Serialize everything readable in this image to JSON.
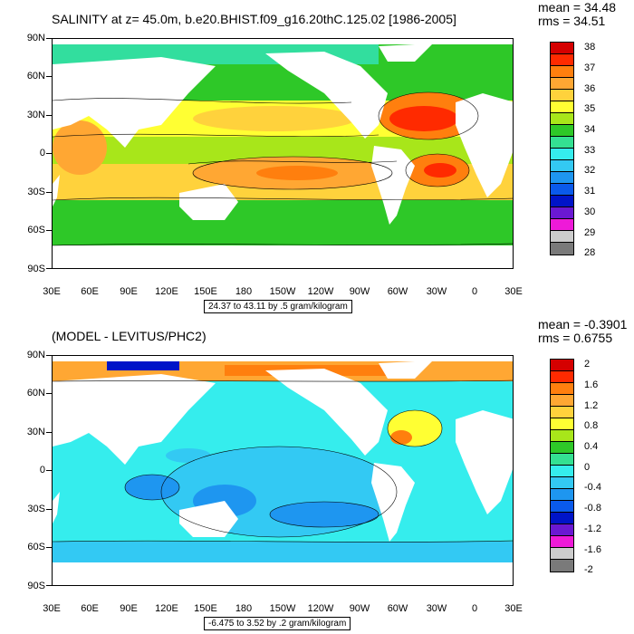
{
  "panels": [
    {
      "title": "SALINITY at z=  45.0m, b.e20.BHIST.f09_g16.20thC.125.02 [1986-2005]",
      "mean_text": "mean = 34.48",
      "rms_text": "rms = 34.51",
      "subtitle": "24.37 to 43.11 by .5 gram/kilogram",
      "lat_labels": [
        "90N",
        "60N",
        "30N",
        "0",
        "30S",
        "60S",
        "90S"
      ],
      "lon_labels": [
        "30E",
        "60E",
        "90E",
        "120E",
        "150E",
        "180",
        "150W",
        "120W",
        "90W",
        "60W",
        "30W",
        "0",
        "30E"
      ],
      "colorbar_labels": [
        "38",
        "37",
        "36",
        "35",
        "34",
        "33",
        "32",
        "31",
        "30",
        "29",
        "28"
      ],
      "colorbar_colors": [
        "#d50000",
        "#ff2a00",
        "#ff7f0e",
        "#ffa733",
        "#ffd23c",
        "#ffff33",
        "#a8e61a",
        "#2ec828",
        "#34e092",
        "#35eded",
        "#33c9f3",
        "#1e96f0",
        "#0a5aeb",
        "#0014c8",
        "#6a18d2",
        "#ee1ad8",
        "#cccccc",
        "#7a7a7a"
      ]
    },
    {
      "title": "(MODEL - LEVITUS/PHC2)",
      "mean_text": "mean = -0.3901",
      "rms_text": "rms = 0.6755",
      "subtitle": "-6.475 to 3.52 by .2 gram/kilogram",
      "lat_labels": [
        "90N",
        "60N",
        "30N",
        "0",
        "30S",
        "60S",
        "90S"
      ],
      "lon_labels": [
        "30E",
        "60E",
        "90E",
        "120E",
        "150E",
        "180",
        "150W",
        "120W",
        "90W",
        "60W",
        "30W",
        "0",
        "30E"
      ],
      "colorbar_labels": [
        "2",
        "1.6",
        "1.2",
        "0.8",
        "0.4",
        "0",
        "-0.4",
        "-0.8",
        "-1.2",
        "-1.6",
        "-2"
      ],
      "colorbar_colors": [
        "#d50000",
        "#ff2a00",
        "#ff7f0e",
        "#ffa733",
        "#ffd23c",
        "#ffff33",
        "#a8e61a",
        "#2ec828",
        "#34e092",
        "#35eded",
        "#33c9f3",
        "#1e96f0",
        "#0a5aeb",
        "#0014c8",
        "#6a18d2",
        "#ee1ad8",
        "#cccccc",
        "#7a7a7a"
      ]
    }
  ]
}
